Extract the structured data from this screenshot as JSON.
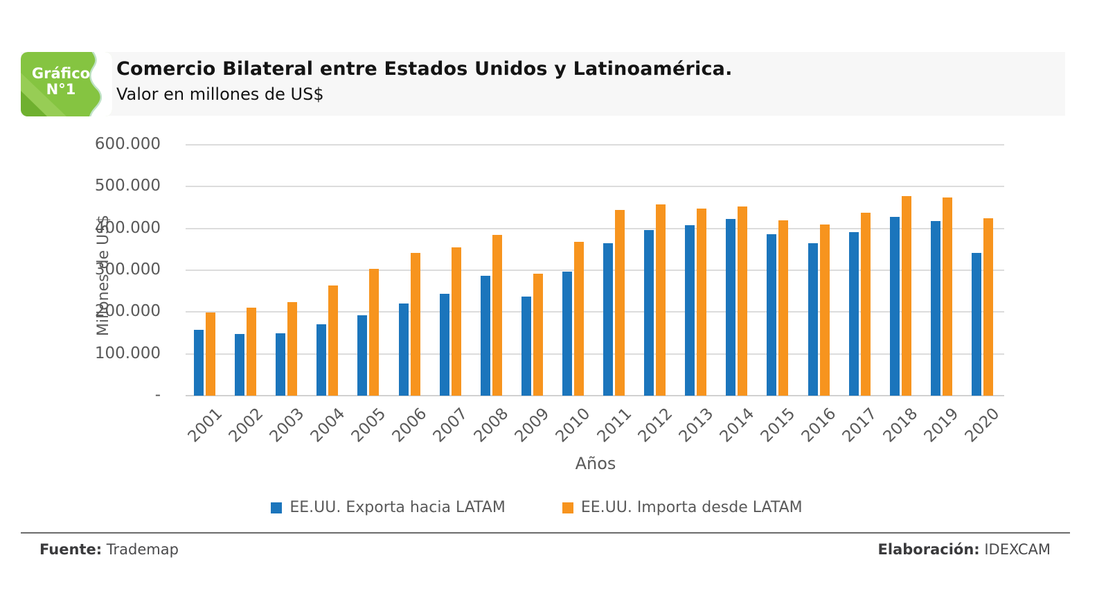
{
  "badge": {
    "line1": "Gráfico",
    "line2": "N°1",
    "color_main": "#85C441",
    "color_band": "#97CD55",
    "color_corner": "#6FB02F",
    "color_blob_edge": "#BFE2C6"
  },
  "header": {
    "title": "Comercio Bilateral entre Estados Unidos y Latinoamérica.",
    "subtitle": "Valor en millones de US$"
  },
  "footer": {
    "source_label": "Fuente:",
    "source_value": " Trademap",
    "elaboration_label": "Elaboración:",
    "elaboration_value": " IDEXCAM"
  },
  "chart_data": {
    "type": "bar",
    "title": "Comercio Bilateral entre Estados Unidos y Latinoamérica.",
    "subtitle": "Valor en millones de US$",
    "xlabel": "Años",
    "ylabel": "Millones de US$",
    "ylim": [
      0,
      600000
    ],
    "ytick_step": 100000,
    "ytick_labels": [
      "-",
      "100.000",
      "200.000",
      "300.000",
      "400.000",
      "500.000",
      "600.000"
    ],
    "grid": true,
    "legend_position": "bottom",
    "categories": [
      "2001",
      "2002",
      "2003",
      "2004",
      "2005",
      "2006",
      "2007",
      "2008",
      "2009",
      "2010",
      "2011",
      "2012",
      "2013",
      "2014",
      "2015",
      "2016",
      "2017",
      "2018",
      "2019",
      "2020"
    ],
    "series": [
      {
        "name": "EE.UU. Exporta hacia LATAM",
        "color": "#1B75BC",
        "values": [
          158000,
          148000,
          150000,
          171000,
          192000,
          221000,
          243000,
          287000,
          237000,
          297000,
          365000,
          396000,
          407000,
          422000,
          386000,
          364000,
          391000,
          428000,
          417000,
          341000
        ]
      },
      {
        "name": "EE.UU. Importa desde LATAM",
        "color": "#F7941E",
        "values": [
          199000,
          210000,
          224000,
          263000,
          304000,
          341000,
          355000,
          385000,
          292000,
          368000,
          445000,
          457000,
          448000,
          453000,
          420000,
          409000,
          437000,
          477000,
          474000,
          425000
        ]
      }
    ]
  }
}
